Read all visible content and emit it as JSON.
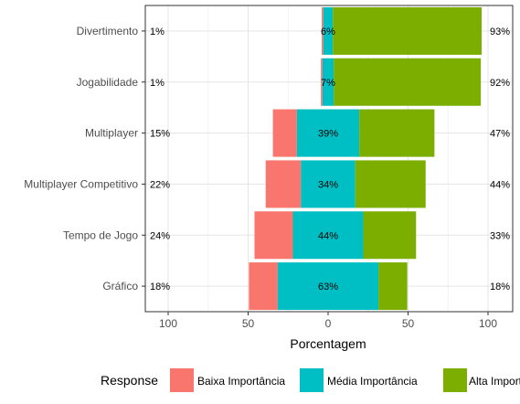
{
  "chart_data": {
    "type": "bar",
    "orientation": "horizontal-diverging",
    "categories": [
      "Divertimento",
      "Jogabilidade",
      "Multiplayer",
      "Multiplayer Competitivo",
      "Tempo de Jogo",
      "Gráfico"
    ],
    "series": [
      {
        "name": "Baixa Importância",
        "color": "#F8766D",
        "values": [
          1,
          1,
          15,
          22,
          24,
          18
        ]
      },
      {
        "name": "Média Importância",
        "color": "#00BFC4",
        "values": [
          6,
          7,
          39,
          34,
          44,
          63
        ]
      },
      {
        "name": "Alta Importância",
        "color": "#7CAE00",
        "values": [
          93,
          92,
          47,
          44,
          33,
          18
        ]
      }
    ],
    "left_labels": [
      "1%",
      "1%",
      "15%",
      "22%",
      "24%",
      "18%"
    ],
    "center_labels": [
      "6%",
      "7%",
      "39%",
      "34%",
      "44%",
      "63%"
    ],
    "right_labels": [
      "93%",
      "92%",
      "47%",
      "44%",
      "33%",
      "18%"
    ],
    "xlabel": "Porcentagem",
    "ylabel": "",
    "xlim": [
      -115,
      115
    ],
    "xticks": [
      -100,
      -50,
      0,
      50,
      100
    ],
    "xtick_labels": [
      "100",
      "50",
      "0",
      "50",
      "100"
    ],
    "grid": true,
    "legend_title": "Response",
    "legend_position": "bottom",
    "legend_labels": [
      "Baixa Importância",
      "Média Importância",
      "Alta Importância"
    ]
  }
}
